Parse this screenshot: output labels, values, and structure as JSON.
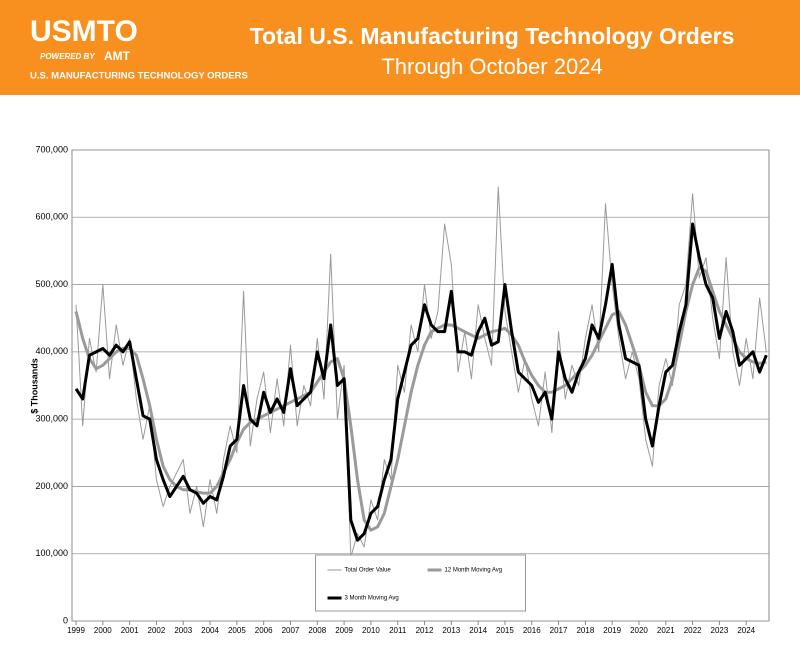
{
  "header": {
    "logo": "USMTO",
    "powered_by": "POWERED BY",
    "brand": "AMT",
    "tagline": "U.S. MANUFACTURING TECHNOLOGY ORDERS"
  },
  "chart_data": {
    "type": "line",
    "title": "Total U.S. Manufacturing Technology Orders",
    "subtitle": "Through October 2024",
    "y_label": "$ Thousands",
    "x": [
      1999,
      1999.25,
      1999.5,
      1999.75,
      2000,
      2000.25,
      2000.5,
      2000.75,
      2001,
      2001.25,
      2001.5,
      2001.75,
      2002,
      2002.25,
      2002.5,
      2002.75,
      2003,
      2003.25,
      2003.5,
      2003.75,
      2004,
      2004.25,
      2004.5,
      2004.75,
      2005,
      2005.25,
      2005.5,
      2005.75,
      2006,
      2006.25,
      2006.5,
      2006.75,
      2007,
      2007.25,
      2007.5,
      2007.75,
      2008,
      2008.25,
      2008.5,
      2008.75,
      2009,
      2009.25,
      2009.5,
      2009.75,
      2010,
      2010.25,
      2010.5,
      2010.75,
      2011,
      2011.25,
      2011.5,
      2011.75,
      2012,
      2012.25,
      2012.5,
      2012.75,
      2013,
      2013.25,
      2013.5,
      2013.75,
      2014,
      2014.25,
      2014.5,
      2014.75,
      2015,
      2015.25,
      2015.5,
      2015.75,
      2016,
      2016.25,
      2016.5,
      2016.75,
      2017,
      2017.25,
      2017.5,
      2017.75,
      2018,
      2018.25,
      2018.5,
      2018.75,
      2019,
      2019.25,
      2019.5,
      2019.75,
      2020,
      2020.25,
      2020.5,
      2020.75,
      2021,
      2021.25,
      2021.5,
      2021.75,
      2022,
      2022.25,
      2022.5,
      2022.75,
      2023,
      2023.25,
      2023.5,
      2023.75,
      2024,
      2024.25,
      2024.5,
      2024.75
    ],
    "series": [
      {
        "name": "Total Order Value",
        "color": "#9a9a9a",
        "line_width": 1,
        "values": [
          470000,
          290000,
          420000,
          370000,
          500000,
          360000,
          440000,
          380000,
          420000,
          330000,
          270000,
          320000,
          210000,
          170000,
          200000,
          220000,
          240000,
          160000,
          200000,
          140000,
          210000,
          160000,
          240000,
          290000,
          250000,
          490000,
          260000,
          330000,
          370000,
          280000,
          360000,
          290000,
          410000,
          290000,
          350000,
          320000,
          420000,
          330000,
          545000,
          300000,
          380000,
          95000,
          130000,
          110000,
          180000,
          150000,
          240000,
          210000,
          380000,
          340000,
          440000,
          400000,
          500000,
          420000,
          460000,
          590000,
          530000,
          370000,
          430000,
          360000,
          470000,
          420000,
          380000,
          645000,
          460000,
          400000,
          340000,
          390000,
          330000,
          290000,
          370000,
          280000,
          430000,
          330000,
          380000,
          350000,
          420000,
          470000,
          400000,
          620000,
          500000,
          420000,
          360000,
          400000,
          360000,
          270000,
          230000,
          350000,
          390000,
          350000,
          470000,
          500000,
          635000,
          510000,
          540000,
          450000,
          390000,
          540000,
          400000,
          350000,
          420000,
          360000,
          480000,
          400000
        ]
      },
      {
        "name": "12 Month Moving Avg",
        "color": "#9a9a9a",
        "line_width": 3,
        "values": [
          460000,
          420000,
          390000,
          375000,
          380000,
          390000,
          400000,
          405000,
          405000,
          395000,
          360000,
          320000,
          270000,
          230000,
          210000,
          200000,
          195000,
          195000,
          192000,
          190000,
          190000,
          200000,
          220000,
          240000,
          265000,
          285000,
          295000,
          300000,
          305000,
          310000,
          315000,
          320000,
          325000,
          330000,
          335000,
          340000,
          355000,
          370000,
          385000,
          390000,
          360000,
          290000,
          210000,
          150000,
          135000,
          140000,
          160000,
          200000,
          240000,
          290000,
          340000,
          380000,
          410000,
          430000,
          435000,
          440000,
          440000,
          435000,
          430000,
          425000,
          420000,
          425000,
          430000,
          432000,
          435000,
          425000,
          410000,
          385000,
          365000,
          350000,
          340000,
          340000,
          345000,
          350000,
          360000,
          370000,
          380000,
          395000,
          415000,
          435000,
          455000,
          460000,
          440000,
          410000,
          380000,
          340000,
          320000,
          320000,
          330000,
          360000,
          410000,
          460000,
          500000,
          525000,
          520000,
          490000,
          460000,
          440000,
          420000,
          400000,
          390000,
          385000,
          383000,
          385000
        ]
      },
      {
        "name": "3 Month Moving Avg",
        "color": "#000000",
        "line_width": 3,
        "values": [
          345000,
          330000,
          395000,
          400000,
          405000,
          395000,
          410000,
          400000,
          415000,
          360000,
          305000,
          300000,
          240000,
          210000,
          185000,
          200000,
          215000,
          195000,
          190000,
          175000,
          185000,
          180000,
          215000,
          260000,
          270000,
          350000,
          300000,
          290000,
          340000,
          310000,
          330000,
          310000,
          375000,
          320000,
          330000,
          340000,
          400000,
          360000,
          440000,
          350000,
          360000,
          150000,
          120000,
          130000,
          160000,
          170000,
          210000,
          240000,
          330000,
          370000,
          410000,
          420000,
          470000,
          440000,
          430000,
          430000,
          490000,
          400000,
          400000,
          395000,
          430000,
          450000,
          410000,
          415000,
          500000,
          430000,
          370000,
          360000,
          350000,
          325000,
          340000,
          300000,
          400000,
          360000,
          340000,
          370000,
          390000,
          440000,
          420000,
          470000,
          530000,
          440000,
          390000,
          385000,
          380000,
          300000,
          260000,
          320000,
          370000,
          380000,
          430000,
          470000,
          590000,
          540000,
          500000,
          480000,
          420000,
          460000,
          430000,
          380000,
          390000,
          400000,
          370000,
          395000
        ]
      }
    ],
    "xlim": [
      1998.85,
      2024.85
    ],
    "xticks": [
      1999,
      2000,
      2001,
      2002,
      2003,
      2004,
      2005,
      2006,
      2007,
      2008,
      2009,
      2010,
      2011,
      2012,
      2013,
      2014,
      2015,
      2016,
      2017,
      2018,
      2019,
      2020,
      2021,
      2022,
      2023,
      2024
    ],
    "ylim": [
      0,
      700000
    ],
    "yticks": [
      0,
      {
        "value": 100000,
        "label": "100,000"
      },
      {
        "value": 200000,
        "label": "200,000"
      },
      {
        "value": 300000,
        "label": "300,000"
      },
      {
        "value": 400000,
        "label": "400,000"
      },
      {
        "value": 500000,
        "label": "500,000"
      },
      {
        "value": 600000,
        "label": "600,000"
      },
      {
        "value": 700000,
        "label": "700,000"
      }
    ],
    "grid": true,
    "legend": "bottom-center"
  }
}
